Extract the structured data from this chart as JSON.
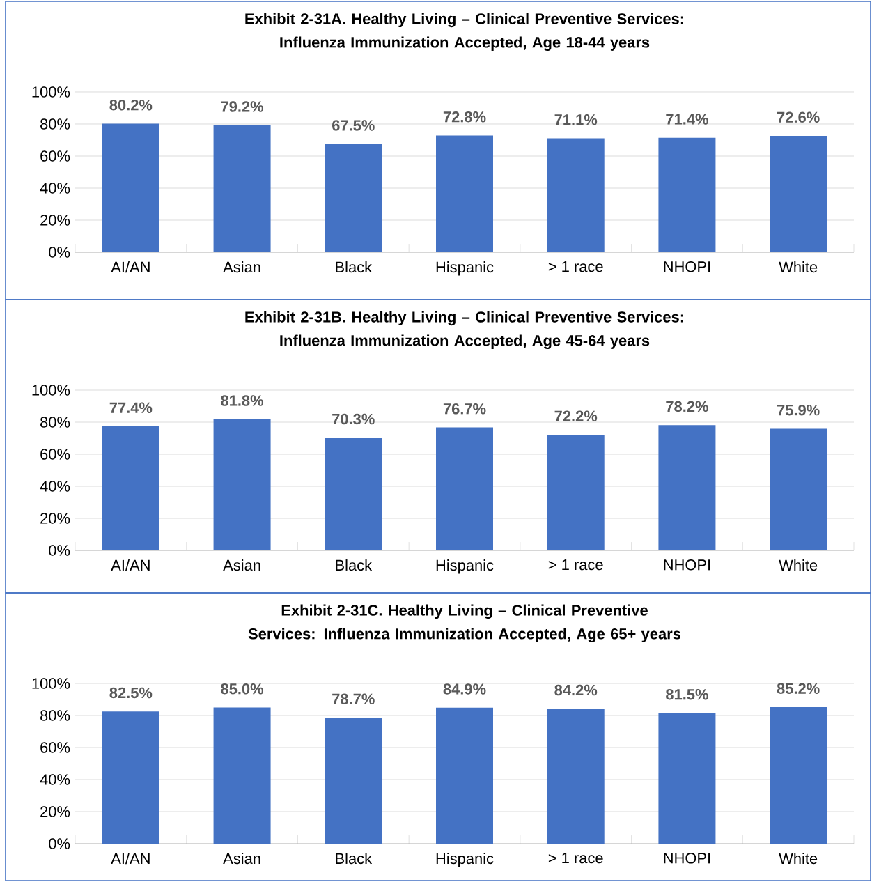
{
  "chart_data": [
    {
      "type": "bar",
      "title": "Exhibit 2-31A. Healthy Living – Clinical Preventive Services: Influenza Immunization Accepted, Age 18-44 years",
      "categories": [
        "AI/AN",
        "Asian",
        "Black",
        "Hispanic",
        "> 1 race",
        "NHOPI",
        "White"
      ],
      "values": [
        80.2,
        79.2,
        67.5,
        72.8,
        71.1,
        71.4,
        72.6
      ],
      "value_labels": [
        "80.2%",
        "79.2%",
        "67.5%",
        "72.8%",
        "71.1%",
        "71.4%",
        "72.6%"
      ],
      "color": "#4472c4",
      "ylim": [
        0,
        100
      ],
      "yticks": [
        {
          "value": 0,
          "label": "0%"
        },
        {
          "value": 20,
          "label": "20%"
        },
        {
          "value": 40,
          "label": "40%"
        },
        {
          "value": 60,
          "label": "60%"
        },
        {
          "value": 80,
          "label": "80%"
        },
        {
          "value": 100,
          "label": "100%"
        }
      ],
      "grid": "y"
    },
    {
      "type": "bar",
      "title": "Exhibit 2-31B. Healthy Living – Clinical Preventive Services: Influenza Immunization Accepted, Age 45-64 years",
      "categories": [
        "AI/AN",
        "Asian",
        "Black",
        "Hispanic",
        "> 1 race",
        "NHOPI",
        "White"
      ],
      "values": [
        77.4,
        81.8,
        70.3,
        76.7,
        72.2,
        78.2,
        75.9
      ],
      "value_labels": [
        "77.4%",
        "81.8%",
        "70.3%",
        "76.7%",
        "72.2%",
        "78.2%",
        "75.9%"
      ],
      "color": "#4472c4",
      "ylim": [
        0,
        100
      ],
      "yticks": [
        {
          "value": 0,
          "label": "0%"
        },
        {
          "value": 20,
          "label": "20%"
        },
        {
          "value": 40,
          "label": "40%"
        },
        {
          "value": 60,
          "label": "60%"
        },
        {
          "value": 80,
          "label": "80%"
        },
        {
          "value": 100,
          "label": "100%"
        }
      ],
      "grid": "y"
    },
    {
      "type": "bar",
      "title": "Exhibit 2-31C. Healthy Living – Clinical Preventive Services: Influenza Immunization Accepted, Age 65+ years",
      "categories": [
        "AI/AN",
        "Asian",
        "Black",
        "Hispanic",
        "> 1 race",
        "NHOPI",
        "White"
      ],
      "values": [
        82.5,
        85.0,
        78.7,
        84.9,
        84.2,
        81.5,
        85.2
      ],
      "value_labels": [
        "82.5%",
        "85.0%",
        "78.7%",
        "84.9%",
        "84.2%",
        "81.5%",
        "85.2%"
      ],
      "color": "#4472c4",
      "ylim": [
        0,
        100
      ],
      "yticks": [
        {
          "value": 0,
          "label": "0%"
        },
        {
          "value": 20,
          "label": "20%"
        },
        {
          "value": 40,
          "label": "40%"
        },
        {
          "value": 60,
          "label": "60%"
        },
        {
          "value": 80,
          "label": "80%"
        },
        {
          "value": 100,
          "label": "100%"
        }
      ],
      "grid": "y"
    }
  ]
}
